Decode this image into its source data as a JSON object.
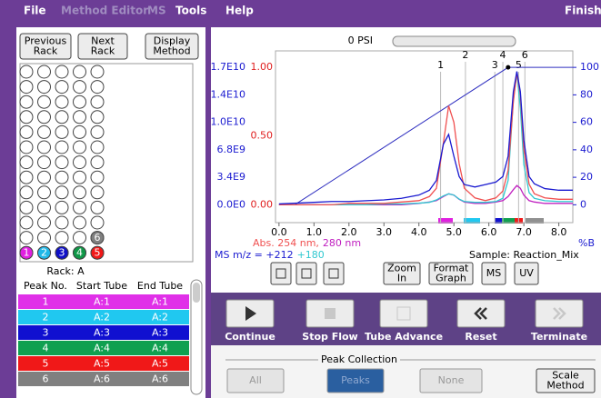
{
  "menu": [
    "File",
    "Method Editor",
    "MS",
    "Tools",
    "Help"
  ],
  "menu_disabled": [
    false,
    true,
    true,
    false,
    false
  ],
  "status": "Finished",
  "rack_buttons": [
    [
      "Previous",
      "Rack"
    ],
    [
      "Next",
      "Rack"
    ],
    [
      "Display",
      "Method"
    ]
  ],
  "rack": {
    "label": "Rack: A",
    "tubes": [
      {
        "label": "1",
        "color": "#e020e0"
      },
      {
        "label": "2",
        "color": "#20b8e8"
      },
      {
        "label": "3",
        "color": "#1010c8"
      },
      {
        "label": "4",
        "color": "#109848"
      },
      {
        "label": "5",
        "color": "#f01818"
      },
      {
        "label": "6",
        "color": "#808080"
      }
    ]
  },
  "peak_table": {
    "columns": [
      "Peak No.",
      "Start Tube",
      "End Tube"
    ],
    "rows": [
      [
        "1",
        "A:1",
        "A:1"
      ],
      [
        "2",
        "A:2",
        "A:2"
      ],
      [
        "3",
        "A:3",
        "A:3"
      ],
      [
        "4",
        "A:4",
        "A:4"
      ],
      [
        "5",
        "A:5",
        "A:5"
      ],
      [
        "6",
        "A:6",
        "A:6"
      ]
    ],
    "colors": [
      "#e030e8",
      "#20c8f0",
      "#1010d0",
      "#10a050",
      "#f01818",
      "#808080"
    ]
  },
  "pressure": "0 PSI",
  "chart": {
    "x": [
      0.0,
      0.5,
      1.0,
      1.5,
      2.0,
      2.5,
      3.0,
      3.5,
      4.0,
      4.3,
      4.5,
      4.7,
      4.85,
      5.0,
      5.15,
      5.3,
      5.6,
      5.9,
      6.2,
      6.4,
      6.55,
      6.7,
      6.8,
      6.9,
      7.0,
      7.15,
      7.3,
      7.6,
      8.0,
      8.4
    ],
    "xlim": [
      -0.1,
      8.4
    ],
    "xticks": [
      {
        "value": 0,
        "label": "0.0"
      },
      {
        "value": 1,
        "label": "1.0"
      },
      {
        "value": 2,
        "label": "2.0"
      },
      {
        "value": 3,
        "label": "3.0"
      },
      {
        "value": 4,
        "label": "4.0"
      },
      {
        "value": 5,
        "label": "5.0"
      },
      {
        "value": 6,
        "label": "6.0"
      },
      {
        "value": 7,
        "label": "7.0"
      },
      {
        "value": 8,
        "label": "8.0"
      }
    ],
    "ms_ylim": [
      -2210000000.0,
      19040000000.0
    ],
    "ms_yticks": [
      {
        "value": 0,
        "label": "0.0E0"
      },
      {
        "value": 3400000000.0,
        "label": "3.4E9"
      },
      {
        "value": 6800000000.0,
        "label": "6.8E9"
      },
      {
        "value": 10200000000.0,
        "label": "1.0E10"
      },
      {
        "value": 13600000000.0,
        "label": "1.4E10"
      },
      {
        "value": 17000000000.0,
        "label": "1.7E10"
      }
    ],
    "ms_color": "#1a1ad0",
    "abs_ylim": [
      -0.13,
      1.12
    ],
    "abs_yticks": [
      {
        "value": 0,
        "label": "0.00"
      },
      {
        "value": 0.5,
        "label": "0.50"
      },
      {
        "value": 1,
        "label": "1.00"
      }
    ],
    "abs_color": "#e02020",
    "pb_ylim": [
      -13,
      112
    ],
    "pb_yticks": [
      0,
      20,
      40,
      60,
      80,
      100
    ],
    "pb_label": "%B",
    "pb_color": "#1a1ad0",
    "series": [
      {
        "name": "Abs. 254 nm,",
        "color": "#f05050",
        "axis": "abs",
        "values": [
          0,
          0,
          0,
          0,
          0.01,
          0.01,
          0.01,
          0.02,
          0.03,
          0.06,
          0.12,
          0.45,
          0.72,
          0.6,
          0.3,
          0.12,
          0.05,
          0.03,
          0.05,
          0.1,
          0.25,
          0.75,
          0.96,
          0.8,
          0.4,
          0.15,
          0.08,
          0.05,
          0.04,
          0.04
        ]
      },
      {
        "name": "280 nm",
        "color": "#c020c0",
        "axis": "abs",
        "values": [
          0,
          0,
          0,
          0,
          0,
          0,
          0,
          0,
          0.01,
          0.02,
          0.03,
          0.06,
          0.08,
          0.07,
          0.04,
          0.02,
          0.01,
          0.01,
          0.02,
          0.03,
          0.06,
          0.11,
          0.14,
          0.12,
          0.07,
          0.03,
          0.02,
          0.01,
          0.01,
          0.01
        ]
      },
      {
        "name": "MS m/z = +212",
        "color": "#1a1ad0",
        "axis": "ms",
        "values": [
          100000000.0,
          200000000.0,
          300000000.0,
          400000000.0,
          400000000.0,
          500000000.0,
          600000000.0,
          800000000.0,
          1200000000.0,
          1800000000.0,
          3000000000.0,
          7500000000.0,
          8700000000.0,
          6000000000.0,
          3500000000.0,
          2500000000.0,
          2200000000.0,
          2500000000.0,
          2800000000.0,
          3500000000.0,
          6000000000.0,
          14000000000.0,
          16500000000.0,
          14000000000.0,
          8000000000.0,
          3500000000.0,
          2600000000.0,
          2000000000.0,
          1800000000.0,
          1800000000.0
        ]
      },
      {
        "name": "+180",
        "color": "#30c8d0",
        "axis": "ms",
        "values": [
          0,
          0,
          0,
          0,
          0,
          0,
          100000000.0,
          100000000.0,
          200000000.0,
          300000000.0,
          600000000.0,
          1100000000.0,
          1350000000.0,
          1200000000.0,
          700000000.0,
          400000000.0,
          300000000.0,
          300000000.0,
          400000000.0,
          800000000.0,
          3000000000.0,
          13000000000.0,
          16300000000.0,
          12000000000.0,
          5000000000.0,
          1500000000.0,
          800000000.0,
          500000000.0,
          400000000.0,
          400000000.0
        ]
      }
    ],
    "gradient": {
      "x": [
        0.45,
        6.55,
        8.4
      ],
      "values": [
        0,
        100,
        100
      ],
      "color": "#3030c0"
    },
    "peaks": [
      {
        "label": "1",
        "x": 4.62
      },
      {
        "label": "2",
        "x": 5.33
      },
      {
        "label": "3",
        "x": 6.17
      },
      {
        "label": "4",
        "x": 6.4
      },
      {
        "label": "5",
        "x": 6.85
      },
      {
        "label": "6",
        "x": 7.03
      }
    ],
    "sample": "Sample: Reaction_Mix"
  },
  "chart_buttons": [
    [
      "Zoom",
      "In"
    ],
    [
      "Format",
      "Graph"
    ],
    [
      "MS"
    ],
    [
      "UV"
    ]
  ],
  "controls": [
    "Continue",
    "Stop Flow",
    "Tube Advance",
    "Reset",
    "Terminate"
  ],
  "peak_collection": {
    "title": "Peak Collection",
    "options": [
      "All",
      "Peaks",
      "None"
    ],
    "selected_index": 1
  },
  "scale_method": [
    "Scale",
    "Method"
  ]
}
